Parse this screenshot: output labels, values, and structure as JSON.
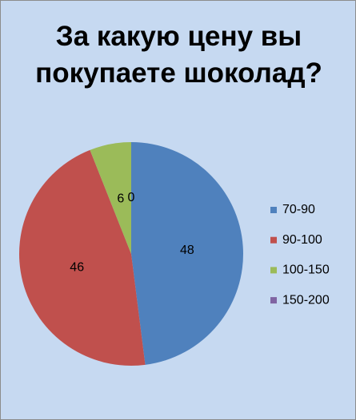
{
  "chart_data": {
    "type": "pie",
    "title": "За какую цену вы покупаете шоколад?",
    "categories": [
      "70-90",
      "90-100",
      "100-150",
      "150-200"
    ],
    "values": [
      48,
      46,
      6,
      0
    ],
    "colors": [
      "#4f81bd",
      "#c0504d",
      "#9bbb59",
      "#8064a2"
    ],
    "legend": "right"
  }
}
